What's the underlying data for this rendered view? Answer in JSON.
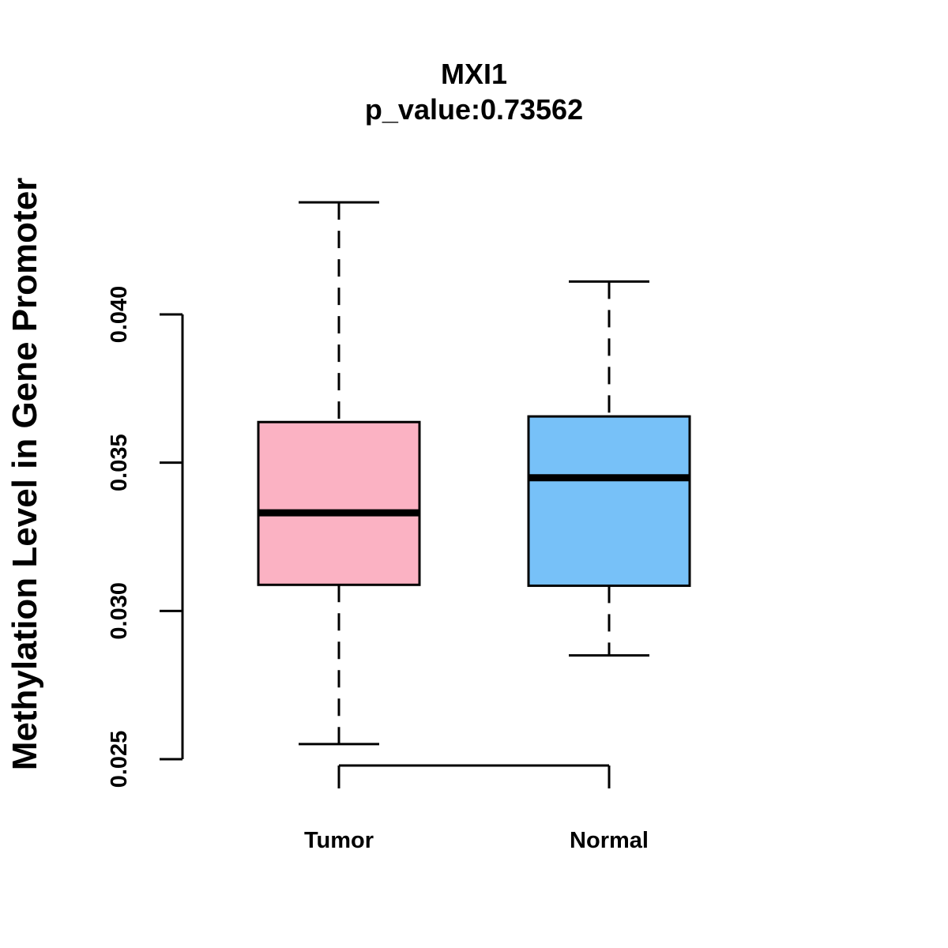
{
  "chart_data": {
    "type": "boxplot",
    "title": "MXI1",
    "subtitle": "p_value:0.73562",
    "xlabel": "",
    "ylabel": "Methylation Level in Gene Promoter",
    "ylim": [
      0.025,
      0.04
    ],
    "yticks": [
      {
        "value": 0.025,
        "label": "0.025"
      },
      {
        "value": 0.03,
        "label": "0.030"
      },
      {
        "value": 0.035,
        "label": "0.035"
      },
      {
        "value": 0.04,
        "label": "0.040"
      }
    ],
    "categories": [
      "Tumor",
      "Normal"
    ],
    "series": [
      {
        "name": "Tumor",
        "color": "#FBB2C3",
        "whisker_low": 0.02551,
        "q1": 0.03088,
        "median": 0.03331,
        "q3": 0.03637,
        "whisker_high": 0.04378
      },
      {
        "name": "Normal",
        "color": "#77C1F8",
        "whisker_low": 0.0285,
        "q1": 0.03085,
        "median": 0.03449,
        "q3": 0.03656,
        "whisker_high": 0.04111
      }
    ]
  }
}
